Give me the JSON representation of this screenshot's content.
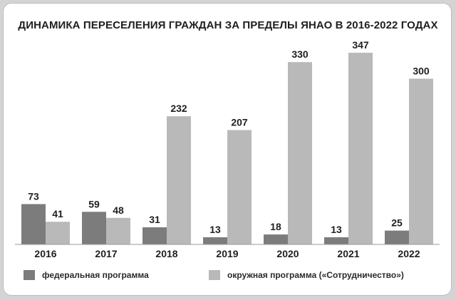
{
  "chart_data": {
    "type": "bar",
    "title": "ДИНАМИКА ПЕРЕСЕЛЕНИЯ ГРАЖДАН ЗА ПРЕДЕЛЫ ЯНАО В 2016-2022 ГОДАХ",
    "categories": [
      "2016",
      "2017",
      "2018",
      "2019",
      "2020",
      "2021",
      "2022"
    ],
    "series": [
      {
        "name": "федеральная программа",
        "values": [
          73,
          59,
          31,
          13,
          18,
          13,
          25
        ],
        "color": "#7c7c7c"
      },
      {
        "name": "окружная программа («Сотрудничество»)",
        "values": [
          41,
          48,
          232,
          207,
          330,
          347,
          300
        ],
        "color": "#b9b9b9"
      }
    ],
    "ylim": [
      0,
      347
    ],
    "grid": false,
    "legend": "bottom",
    "xlabel": "",
    "ylabel": ""
  }
}
